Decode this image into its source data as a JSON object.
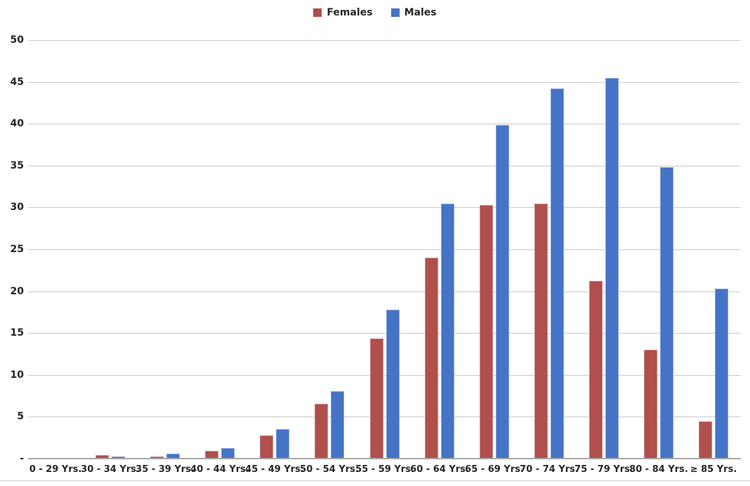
{
  "chart_data": {
    "type": "bar",
    "title": "",
    "categories": [
      "0 - 29 Yrs.",
      "30 - 34 Yrs.",
      "35 - 39 Yrs.",
      "40 - 44 Yrs.",
      "45 - 49 Yrs.",
      "50 - 54 Yrs.",
      "55 - 59 Yrs.",
      "60 - 64 Yrs.",
      "65 - 69 Yrs.",
      "70 - 74 Yrs.",
      "75 - 79 Yrs.",
      "80 - 84 Yrs.",
      "≥ 85 Yrs."
    ],
    "series": [
      {
        "name": "Females",
        "color": "#b04f4c",
        "border_color": "#c98886",
        "values": [
          0,
          0.3,
          0.2,
          0.8,
          2.7,
          6.5,
          14.3,
          23.9,
          30.2,
          30.4,
          21.1,
          12.9,
          4.4
        ]
      },
      {
        "name": "Males",
        "color": "#4573c6",
        "border_color": "#87a5dd",
        "values": [
          0,
          0.2,
          0.5,
          1.2,
          3.4,
          8.0,
          17.7,
          30.4,
          39.8,
          44.1,
          45.4,
          34.7,
          20.2
        ]
      }
    ],
    "xlabel": "",
    "ylabel": "",
    "ylim": [
      0,
      50
    ],
    "yticks": [
      {
        "value": 50,
        "label": "50"
      },
      {
        "value": 45,
        "label": "45"
      },
      {
        "value": 40,
        "label": "40"
      },
      {
        "value": 35,
        "label": "35"
      },
      {
        "value": 30,
        "label": "30"
      },
      {
        "value": 25,
        "label": "25"
      },
      {
        "value": 20,
        "label": "20"
      },
      {
        "value": 15,
        "label": "15"
      },
      {
        "value": 10,
        "label": "10"
      },
      {
        "value": 5,
        "label": "5"
      },
      {
        "value": 0,
        "label": "-"
      }
    ],
    "grid": true,
    "legend_position": "top-center"
  },
  "colors": {
    "gridline": "#c9c9c9",
    "axis_line": "#a8a8a8",
    "text": "#262626",
    "chart_border": "#d2d2d2",
    "background": "#ffffff"
  }
}
